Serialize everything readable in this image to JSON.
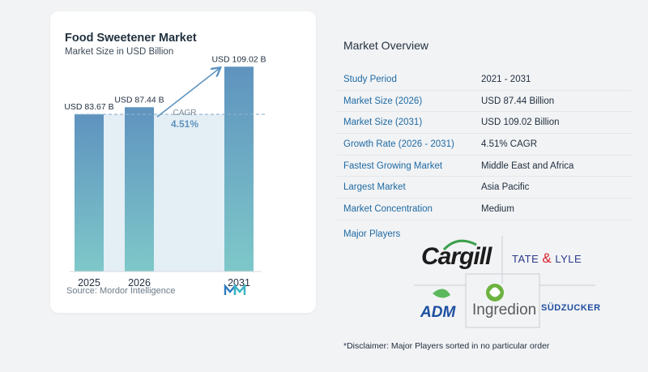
{
  "chart": {
    "title": "Food Sweetener Market",
    "subtitle": "Market Size in USD Billion",
    "source": "Source: Mordor Intelligence",
    "cagr_label": "CAGR",
    "cagr_value": "4.51%"
  },
  "chart_data": {
    "type": "bar",
    "categories": [
      "2025",
      "2026",
      "2031"
    ],
    "values": [
      83.67,
      87.44,
      109.02
    ],
    "data_labels": [
      "USD 83.67 B",
      "USD 87.44 B",
      "USD 109.02 B"
    ],
    "title": "Food Sweetener Market",
    "subtitle": "Market Size in USD Billion",
    "xlabel": "",
    "ylabel": "",
    "ylim": [
      0,
      110
    ],
    "grid": false,
    "legend": "none",
    "colors": {
      "bar_top": "#5f93bf",
      "bar_bottom": "#7ec8c9",
      "reference_line": "#8fb3cc",
      "shade": "#e4eef5",
      "cagr_arrow": "#5f93bf"
    }
  },
  "overview": {
    "title": "Market Overview",
    "rows": [
      {
        "key": "Study Period",
        "value": "2021 - 2031"
      },
      {
        "key": "Market Size (2026)",
        "value": "USD 87.44 Billion"
      },
      {
        "key": "Market Size (2031)",
        "value": "USD 109.02 Billion"
      },
      {
        "key": "Growth Rate (2026 - 2031)",
        "value": "4.51% CAGR"
      },
      {
        "key": "Fastest Growing Market",
        "value": "Middle East and Africa"
      },
      {
        "key": "Largest Market",
        "value": "Asia Pacific"
      },
      {
        "key": "Market Concentration",
        "value": "Medium"
      }
    ],
    "key_color": "#1e6aa3"
  },
  "players": {
    "label": "Major Players",
    "logos": {
      "cargill": "Cargill",
      "tate_part1": "TATE ",
      "tate_amp": "&",
      "tate_part2": " LYLE",
      "adm": "ADM",
      "ingredion": "Ingredion",
      "sudzucker": "SÜDZUCKER"
    }
  },
  "disclaimer": "*Disclaimer: Major Players sorted in no particular order"
}
